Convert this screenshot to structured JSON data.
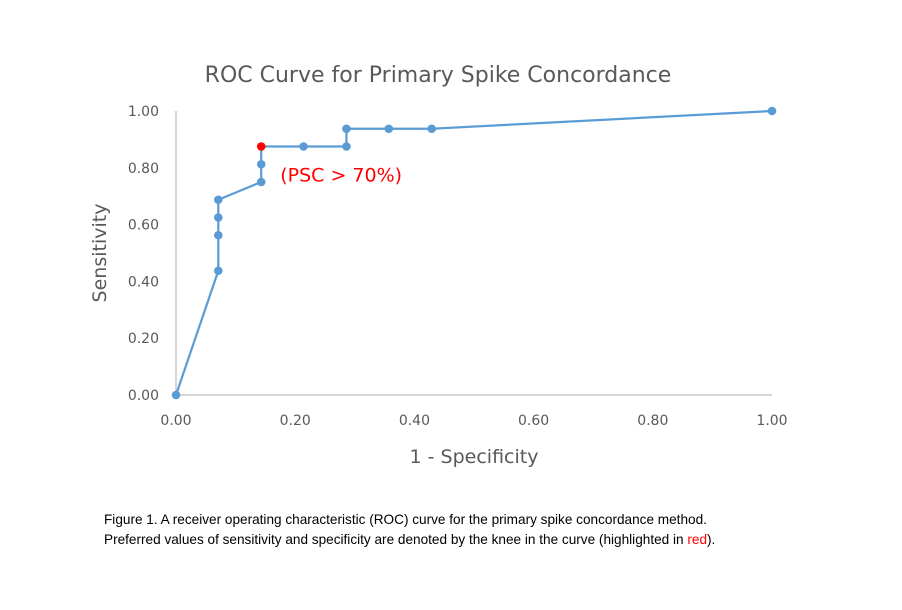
{
  "chart_data": {
    "type": "line",
    "title": "ROC Curve for Primary Spike Concordance",
    "xlabel": "1 - Specificity",
    "ylabel": "Sensitivity",
    "xlim": [
      0,
      1
    ],
    "ylim": [
      0,
      1
    ],
    "xticks": [
      "0.00",
      "0.20",
      "0.40",
      "0.60",
      "0.80",
      "1.00"
    ],
    "yticks": [
      "0.00",
      "0.20",
      "0.40",
      "0.60",
      "0.80",
      "1.00"
    ],
    "grid": false,
    "legend": "none",
    "series": [
      {
        "name": "ROC",
        "color": "#5b9bd5",
        "points": [
          {
            "x": 0.0,
            "y": 0.0
          },
          {
            "x": 0.071,
            "y": 0.4375
          },
          {
            "x": 0.071,
            "y": 0.5625
          },
          {
            "x": 0.071,
            "y": 0.625
          },
          {
            "x": 0.071,
            "y": 0.6875
          },
          {
            "x": 0.143,
            "y": 0.75
          },
          {
            "x": 0.143,
            "y": 0.8125
          },
          {
            "x": 0.143,
            "y": 0.875,
            "highlight": true
          },
          {
            "x": 0.214,
            "y": 0.875
          },
          {
            "x": 0.286,
            "y": 0.875
          },
          {
            "x": 0.286,
            "y": 0.9375
          },
          {
            "x": 0.357,
            "y": 0.9375
          },
          {
            "x": 0.429,
            "y": 0.9375
          },
          {
            "x": 1.0,
            "y": 1.0
          }
        ]
      }
    ],
    "highlight_color": "#ff0000",
    "annotation": {
      "text": "(PSC > 70%)",
      "x": 0.143,
      "y": 0.875,
      "color": "#ff0000"
    }
  },
  "caption": {
    "line1": "Figure 1. A receiver operating characteristic (ROC) curve for the primary  spike concordance method.",
    "line2_prefix": "Preferred values of sensitivity and specificity are denoted by the knee in the curve (highlighted in ",
    "line2_highlight": "red",
    "line2_suffix": ")."
  }
}
